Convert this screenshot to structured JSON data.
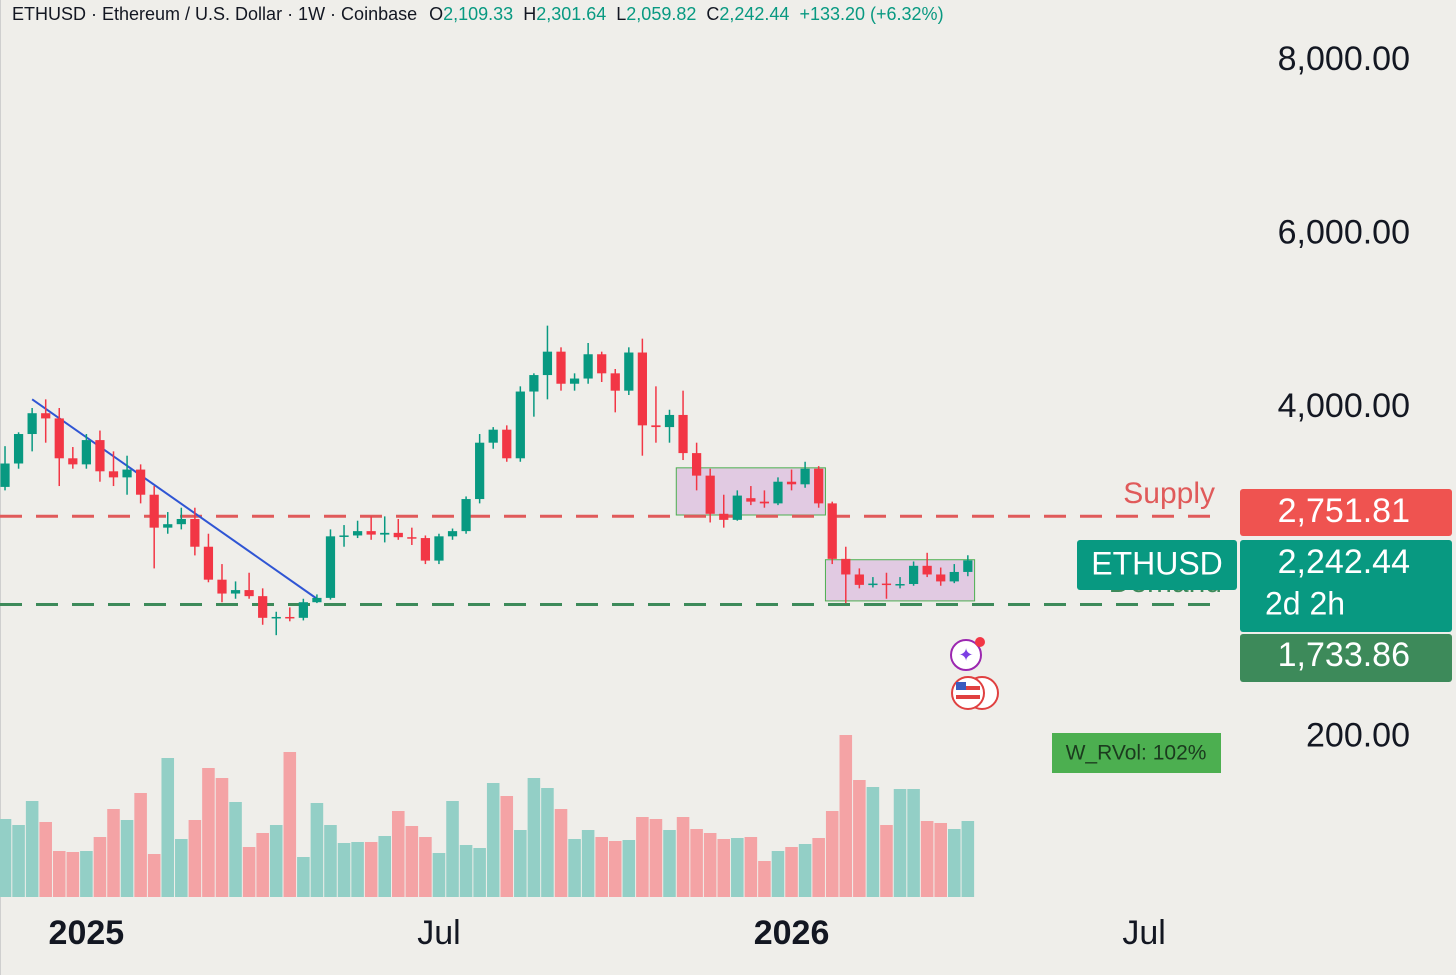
{
  "header": {
    "symbol_line": "ETHUSD · Ethereum / U.S. Dollar · 1W · Coinbase",
    "ohlc": [
      {
        "key": "O",
        "value": "2,109.33"
      },
      {
        "key": "H",
        "value": "2,301.64"
      },
      {
        "key": "L",
        "value": "2,059.82"
      },
      {
        "key": "C",
        "value": "2,242.44"
      }
    ],
    "change": "+133.20 (+6.32%)"
  },
  "chart_data": {
    "type": "candlestick",
    "up_color": "#089981",
    "down_color": "#f23645",
    "xlim": [
      -0.37,
      91.07
    ],
    "xticks": [
      {
        "value": 6,
        "label": "2025"
      },
      {
        "value": 32,
        "label": "Jul"
      },
      {
        "value": 58,
        "label": "2026"
      },
      {
        "value": 84,
        "label": "Jul"
      }
    ],
    "ylim": [
      -1640,
      8706
    ],
    "yticks": [
      {
        "value": 8000,
        "label": "8,000.00"
      },
      {
        "value": 6000,
        "label": "6,000.00"
      },
      {
        "value": 4000,
        "label": "4,000.00"
      },
      {
        "value": 200,
        "label": "200.00"
      }
    ],
    "ohlc": [
      [
        3090,
        3560,
        3050,
        3360
      ],
      [
        3360,
        3720,
        3300,
        3700
      ],
      [
        3700,
        4000,
        3500,
        3940
      ],
      [
        3940,
        4100,
        3600,
        3880
      ],
      [
        3880,
        4000,
        3100,
        3420
      ],
      [
        3420,
        3550,
        3300,
        3350
      ],
      [
        3350,
        3700,
        3300,
        3630
      ],
      [
        3630,
        3740,
        3150,
        3270
      ],
      [
        3270,
        3500,
        3100,
        3200
      ],
      [
        3200,
        3450,
        3000,
        3290
      ],
      [
        3290,
        3350,
        2900,
        3000
      ],
      [
        3000,
        3100,
        2150,
        2620
      ],
      [
        2620,
        2800,
        2550,
        2660
      ],
      [
        2660,
        2850,
        2600,
        2720
      ],
      [
        2720,
        2850,
        2300,
        2400
      ],
      [
        2400,
        2550,
        1990,
        2020
      ],
      [
        2020,
        2200,
        1760,
        1860
      ],
      [
        1860,
        2000,
        1800,
        1900
      ],
      [
        1900,
        2100,
        1800,
        1830
      ],
      [
        1830,
        1920,
        1500,
        1580
      ],
      [
        1580,
        1650,
        1380,
        1590
      ],
      [
        1590,
        1700,
        1540,
        1580
      ],
      [
        1580,
        1800,
        1550,
        1760
      ],
      [
        1760,
        1850,
        1750,
        1810
      ],
      [
        1810,
        2600,
        1790,
        2520
      ],
      [
        2520,
        2650,
        2400,
        2530
      ],
      [
        2530,
        2700,
        2500,
        2580
      ],
      [
        2580,
        2750,
        2480,
        2540
      ],
      [
        2540,
        2750,
        2450,
        2560
      ],
      [
        2560,
        2720,
        2480,
        2510
      ],
      [
        2510,
        2620,
        2420,
        2500
      ],
      [
        2500,
        2530,
        2200,
        2240
      ],
      [
        2240,
        2550,
        2200,
        2520
      ],
      [
        2520,
        2610,
        2480,
        2580
      ],
      [
        2580,
        2980,
        2550,
        2950
      ],
      [
        2950,
        3700,
        2900,
        3600
      ],
      [
        3600,
        3780,
        3530,
        3750
      ],
      [
        3750,
        3800,
        3380,
        3420
      ],
      [
        3420,
        4250,
        3380,
        4190
      ],
      [
        4190,
        4400,
        3900,
        4380
      ],
      [
        4380,
        4950,
        4100,
        4650
      ],
      [
        4650,
        4700,
        4200,
        4280
      ],
      [
        4280,
        4400,
        4200,
        4340
      ],
      [
        4340,
        4750,
        4280,
        4620
      ],
      [
        4620,
        4650,
        4300,
        4400
      ],
      [
        4400,
        4450,
        3950,
        4200
      ],
      [
        4200,
        4700,
        4150,
        4640
      ],
      [
        4640,
        4800,
        3450,
        3800
      ],
      [
        3800,
        4250,
        3600,
        3780
      ],
      [
        3780,
        3980,
        3600,
        3920
      ],
      [
        3920,
        4200,
        3400,
        3480
      ],
      [
        3480,
        3600,
        3050,
        3220
      ],
      [
        3220,
        3300,
        2680,
        2780
      ],
      [
        2780,
        3000,
        2620,
        2710
      ],
      [
        2710,
        3050,
        2700,
        2990
      ],
      [
        2960,
        3100,
        2880,
        2920
      ],
      [
        2920,
        3050,
        2850,
        2900
      ],
      [
        2900,
        3200,
        2880,
        3150
      ],
      [
        3150,
        3290,
        3050,
        3120
      ],
      [
        3120,
        3380,
        3080,
        3300
      ],
      [
        3300,
        3330,
        2850,
        2900
      ],
      [
        2900,
        2920,
        2200,
        2260
      ],
      [
        2260,
        2400,
        1750,
        2080
      ],
      [
        2080,
        2150,
        1920,
        1960
      ],
      [
        1960,
        2050,
        1930,
        1975
      ],
      [
        1975,
        2100,
        1800,
        1960
      ],
      [
        1960,
        2050,
        1920,
        1970
      ],
      [
        1970,
        2230,
        1950,
        2180
      ],
      [
        2180,
        2330,
        2050,
        2080
      ],
      [
        2080,
        2160,
        1950,
        2000
      ],
      [
        2000,
        2200,
        1980,
        2109
      ],
      [
        2109.33,
        2301.64,
        2059.82,
        2242.44
      ]
    ],
    "volume": [
      78,
      72,
      96,
      75,
      46,
      45,
      46,
      60,
      88,
      77,
      104,
      43,
      139,
      58,
      77,
      129,
      119,
      95,
      50,
      64,
      72,
      145,
      40,
      94,
      72,
      54,
      55,
      55,
      61,
      86,
      71,
      60,
      44,
      96,
      52,
      49,
      114,
      101,
      67,
      119,
      109,
      88,
      58,
      67,
      60,
      56,
      57,
      80,
      78,
      67,
      80,
      68,
      64,
      58,
      59,
      60,
      36,
      46,
      50,
      53,
      59,
      86,
      162,
      117,
      110,
      72,
      108,
      108,
      76,
      74,
      68,
      76
    ],
    "volume_lim": [
      0,
      170
    ],
    "supply": {
      "name": "Supply",
      "value": 2751.81,
      "label": "2,751.81",
      "color": "#e05a5a"
    },
    "demand": {
      "name": "Demand",
      "value": 1733.86,
      "label": "1,733.86",
      "color": "#3d8a5a"
    },
    "last_price": {
      "symbol": "ETHUSD",
      "value": 2242.44,
      "label": "2,242.44",
      "countdown": "2d 2h"
    },
    "trendline": {
      "x": [
        2,
        23
      ],
      "y": [
        4100,
        1800
      ],
      "color": "#2f55d4"
    },
    "zones": [
      {
        "x": [
          50,
          61
        ],
        "y": [
          2766,
          3310
        ]
      },
      {
        "x": [
          61,
          72
        ],
        "y": [
          1775,
          2250
        ]
      }
    ],
    "indicator_label": "W_RVol: 102%"
  }
}
